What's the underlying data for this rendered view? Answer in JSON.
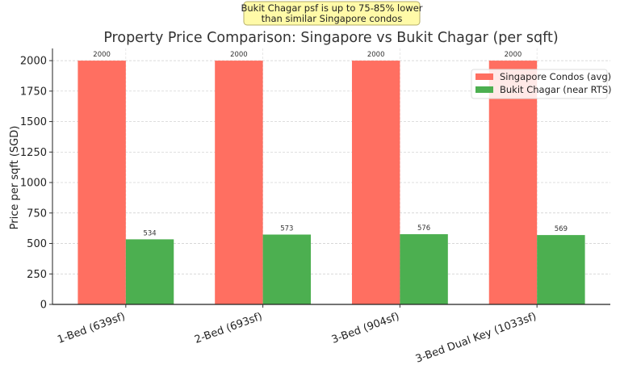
{
  "chart_data": {
    "type": "bar",
    "title": "Property Price Comparison: Singapore vs Bukit Chagar (per sqft)",
    "xlabel": "",
    "ylabel": "Price per sqft (SGD)",
    "categories": [
      "1-Bed (639sf)",
      "2-Bed (693sf)",
      "3-Bed (904sf)",
      "3-Bed Dual Key (1033sf)"
    ],
    "series": [
      {
        "name": "Singapore Condos (avg)",
        "values": [
          2000,
          2000,
          2000,
          2000
        ],
        "color": "#ff6f61"
      },
      {
        "name": "Bukit Chagar (near RTS)",
        "values": [
          534,
          573,
          576,
          569
        ],
        "color": "#4caf50"
      }
    ],
    "ylim": [
      0,
      2100
    ],
    "yticks": [
      0,
      250,
      500,
      750,
      1000,
      1250,
      1500,
      1750,
      2000
    ],
    "grid": "y-dashed",
    "legend": "top-right",
    "annotation": "Bukit Chagar psf is up to 75-85% lower\nthan similar Singapore condos"
  }
}
